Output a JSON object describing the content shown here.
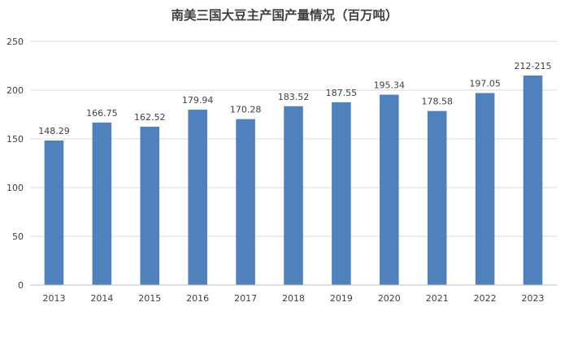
{
  "chart_data": {
    "type": "bar",
    "title": "南美三国大豆主产国产量情况（百万吨）",
    "xlabel": "",
    "ylabel": "",
    "categories": [
      "2013",
      "2014",
      "2015",
      "2016",
      "2017",
      "2018",
      "2019",
      "2020",
      "2021",
      "2022",
      "2023"
    ],
    "values": [
      148.29,
      166.75,
      162.52,
      179.94,
      170.28,
      183.52,
      187.55,
      195.34,
      178.58,
      197.05,
      215
    ],
    "data_labels": [
      "148.29",
      "166.75",
      "162.52",
      "179.94",
      "170.28",
      "183.52",
      "187.55",
      "195.34",
      "178.58",
      "197.05",
      "212-215"
    ],
    "ylim": [
      0,
      250
    ],
    "yticks": [
      0,
      50,
      100,
      150,
      200,
      250
    ],
    "grid": true,
    "bar_color": "#4f81bd"
  }
}
